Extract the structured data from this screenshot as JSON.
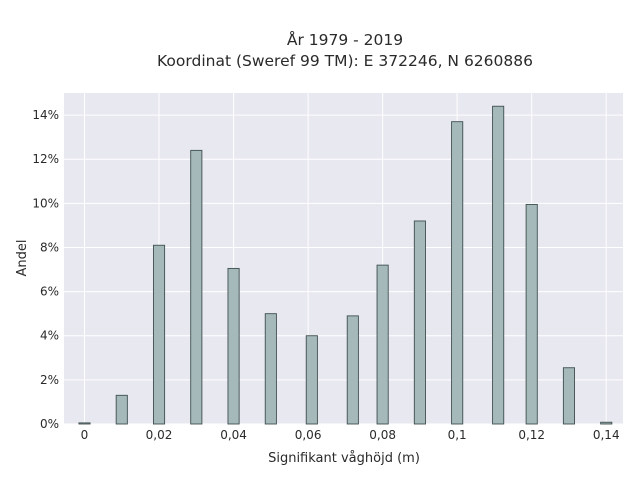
{
  "chart_data": {
    "type": "bar",
    "title_lines": [
      "År 1979 - 2019",
      "Koordinat (Sweref 99 TM): E 372246, N 6260886"
    ],
    "xlabel": "Signifikant våghöjd (m)",
    "ylabel": "Andel",
    "xlim": [
      -0.0055,
      0.1445
    ],
    "ylim": [
      0,
      15.0
    ],
    "x_ticks": [
      0,
      0.02,
      0.04,
      0.06,
      0.08,
      0.1,
      0.12,
      0.14
    ],
    "x_tick_labels": [
      "0",
      "0,02",
      "0,04",
      "0,06",
      "0,08",
      "0,1",
      "0,12",
      "0,14"
    ],
    "y_ticks": [
      0,
      2,
      4,
      6,
      8,
      10,
      12,
      14
    ],
    "y_tick_labels": [
      "0%",
      "2%",
      "4%",
      "6%",
      "8%",
      "10%",
      "12%",
      "14%"
    ],
    "bar_width": 0.003,
    "grid": true,
    "x": [
      0.0,
      0.01,
      0.02,
      0.03,
      0.04,
      0.05,
      0.061,
      0.072,
      0.08,
      0.09,
      0.1,
      0.111,
      0.12,
      0.13,
      0.14
    ],
    "values": [
      0.05,
      1.3,
      8.1,
      12.4,
      7.05,
      5.0,
      4.0,
      4.9,
      7.2,
      9.2,
      13.7,
      14.4,
      9.95,
      2.55,
      0.08
    ],
    "colors": {
      "bar_fill": "#a5b9bb",
      "bar_stroke": "#3f4f4f",
      "plot_bg": "#e8e8f0",
      "grid": "#ffffff"
    }
  }
}
